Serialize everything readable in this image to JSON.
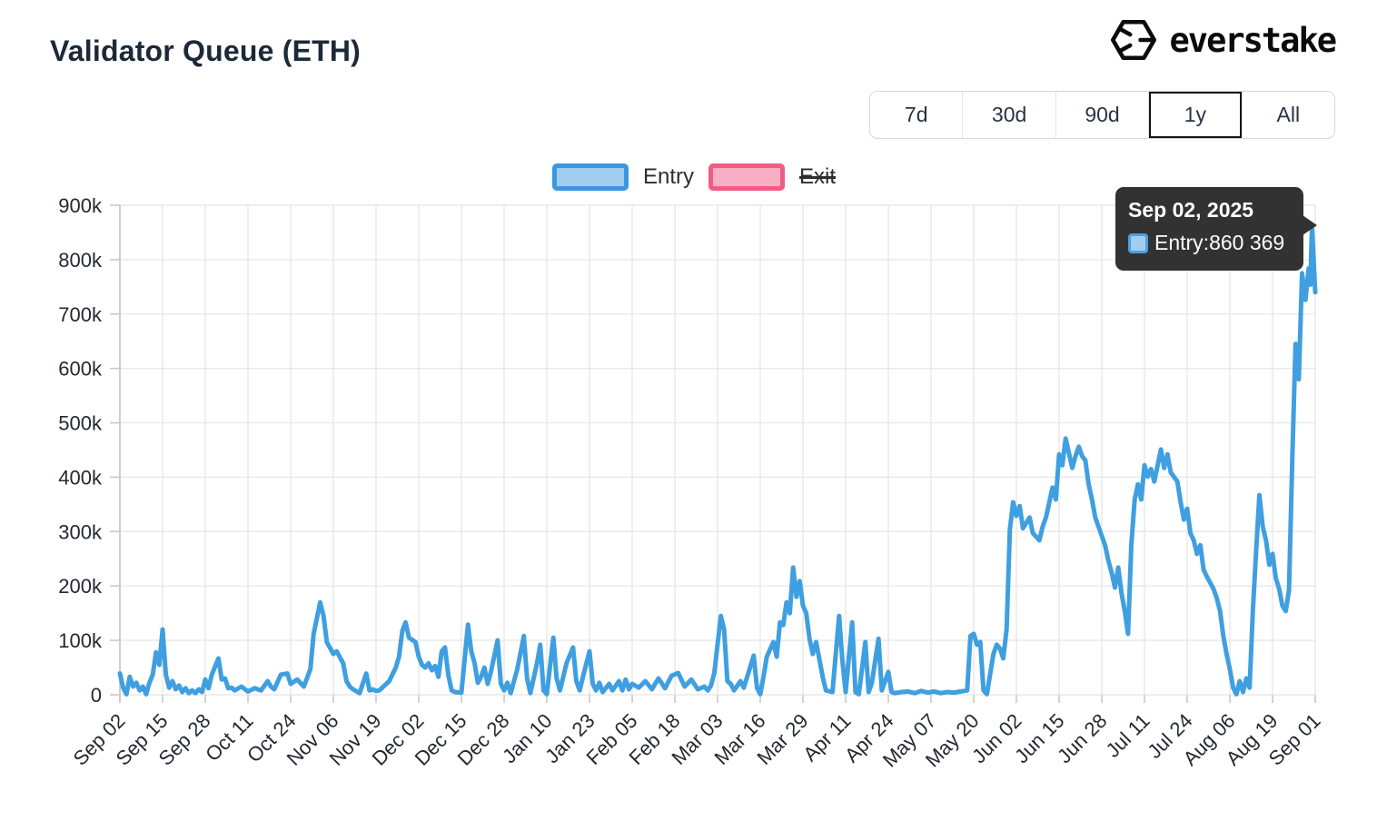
{
  "header": {
    "title": "Validator Queue (ETH)",
    "brand": "everstake"
  },
  "range_selector": {
    "options": [
      "7d",
      "30d",
      "90d",
      "1y",
      "All"
    ],
    "selected": "1y"
  },
  "legend": {
    "items": [
      {
        "label": "Entry",
        "color": "#3b97e0",
        "fill": "#a2cdf0",
        "hidden": false
      },
      {
        "label": "Exit",
        "color": "#f25c82",
        "fill": "#f8afc4",
        "hidden": true
      }
    ]
  },
  "tooltip": {
    "date": "Sep 02, 2025",
    "row_label": "Entry",
    "separator": ": ",
    "row_value": "860 369"
  },
  "chart_data": {
    "type": "line",
    "title": "Validator Queue (ETH)",
    "xlabel": "",
    "ylabel": "",
    "unit": "validators",
    "grid": true,
    "legend_position": "top-center",
    "ylim": [
      0,
      900000
    ],
    "y_tick_values": [
      0,
      100000,
      200000,
      300000,
      400000,
      500000,
      600000,
      700000,
      800000,
      900000
    ],
    "y_tick_labels": [
      "0",
      "100k",
      "200k",
      "300k",
      "400k",
      "500k",
      "600k",
      "700k",
      "800k",
      "900k"
    ],
    "x_tick_interval_days": 13,
    "x_span_days": 364,
    "x_tick_labels": [
      "Sep 02",
      "Sep 15",
      "Sep 28",
      "Oct 11",
      "Oct 24",
      "Nov 06",
      "Nov 19",
      "Dec 02",
      "Dec 15",
      "Dec 28",
      "Jan 10",
      "Jan 23",
      "Feb 05",
      "Feb 18",
      "Mar 03",
      "Mar 16",
      "Mar 29",
      "Apr 11",
      "Apr 24",
      "May 07",
      "May 20",
      "Jun 02",
      "Jun 15",
      "Jun 28",
      "Jul 11",
      "Jul 24",
      "Aug 06",
      "Aug 19",
      "Sep 01"
    ],
    "hovered_point": {
      "date": "Sep 02, 2025",
      "series": "Entry",
      "value": 860369
    },
    "series": [
      {
        "name": "Entry",
        "visible": true,
        "color": "#3f9fe0",
        "points": [
          [
            0,
            39000
          ],
          [
            1,
            13000
          ],
          [
            2,
            1000
          ],
          [
            3,
            33000
          ],
          [
            4,
            15000
          ],
          [
            5,
            22000
          ],
          [
            6,
            8000
          ],
          [
            7,
            15000
          ],
          [
            8,
            1000
          ],
          [
            9,
            22000
          ],
          [
            10,
            37000
          ],
          [
            11,
            78000
          ],
          [
            12,
            55000
          ],
          [
            13,
            120000
          ],
          [
            14,
            37000
          ],
          [
            15,
            13000
          ],
          [
            16,
            25000
          ],
          [
            17,
            10000
          ],
          [
            18,
            17000
          ],
          [
            19,
            5000
          ],
          [
            20,
            12000
          ],
          [
            21,
            3000
          ],
          [
            22,
            8000
          ],
          [
            23,
            3000
          ],
          [
            24,
            10000
          ],
          [
            25,
            5000
          ],
          [
            26,
            28000
          ],
          [
            27,
            12000
          ],
          [
            28,
            37000
          ],
          [
            30,
            67000
          ],
          [
            31,
            28000
          ],
          [
            32,
            30000
          ],
          [
            33,
            12000
          ],
          [
            34,
            13000
          ],
          [
            35,
            8000
          ],
          [
            37,
            15000
          ],
          [
            39,
            6000
          ],
          [
            41,
            12000
          ],
          [
            43,
            8000
          ],
          [
            45,
            25000
          ],
          [
            46,
            15000
          ],
          [
            47,
            10000
          ],
          [
            49,
            37000
          ],
          [
            51,
            39000
          ],
          [
            52,
            20000
          ],
          [
            54,
            28000
          ],
          [
            56,
            15000
          ],
          [
            58,
            47000
          ],
          [
            59,
            112000
          ],
          [
            61,
            170000
          ],
          [
            62,
            145000
          ],
          [
            63,
            97000
          ],
          [
            65,
            75000
          ],
          [
            66,
            80000
          ],
          [
            68,
            58000
          ],
          [
            69,
            25000
          ],
          [
            70,
            15000
          ],
          [
            71,
            10000
          ],
          [
            73,
            3000
          ],
          [
            75,
            39000
          ],
          [
            76,
            8000
          ],
          [
            77,
            10000
          ],
          [
            78,
            7000
          ],
          [
            79,
            8000
          ],
          [
            82,
            25000
          ],
          [
            84,
            50000
          ],
          [
            85,
            70000
          ],
          [
            86,
            117000
          ],
          [
            87,
            133000
          ],
          [
            88,
            105000
          ],
          [
            90,
            97000
          ],
          [
            91,
            70000
          ],
          [
            92,
            55000
          ],
          [
            93,
            50000
          ],
          [
            94,
            58000
          ],
          [
            95,
            45000
          ],
          [
            96,
            53000
          ],
          [
            97,
            33000
          ],
          [
            98,
            80000
          ],
          [
            99,
            87000
          ],
          [
            100,
            37000
          ],
          [
            101,
            8000
          ],
          [
            102,
            5000
          ],
          [
            104,
            4000
          ],
          [
            106,
            129000
          ],
          [
            107,
            80000
          ],
          [
            108,
            58000
          ],
          [
            109,
            22000
          ],
          [
            110,
            33000
          ],
          [
            111,
            50000
          ],
          [
            112,
            20000
          ],
          [
            113,
            42000
          ],
          [
            115,
            100000
          ],
          [
            116,
            20000
          ],
          [
            117,
            8000
          ],
          [
            118,
            22000
          ],
          [
            119,
            3000
          ],
          [
            121,
            47000
          ],
          [
            123,
            108000
          ],
          [
            124,
            30000
          ],
          [
            125,
            3000
          ],
          [
            127,
            58000
          ],
          [
            128,
            92000
          ],
          [
            129,
            8000
          ],
          [
            130,
            1000
          ],
          [
            132,
            105000
          ],
          [
            133,
            30000
          ],
          [
            134,
            8000
          ],
          [
            136,
            58000
          ],
          [
            138,
            87000
          ],
          [
            139,
            25000
          ],
          [
            140,
            8000
          ],
          [
            141,
            33000
          ],
          [
            143,
            80000
          ],
          [
            144,
            20000
          ],
          [
            145,
            8000
          ],
          [
            146,
            22000
          ],
          [
            147,
            5000
          ],
          [
            149,
            20000
          ],
          [
            150,
            8000
          ],
          [
            152,
            25000
          ],
          [
            153,
            8000
          ],
          [
            154,
            28000
          ],
          [
            155,
            10000
          ],
          [
            156,
            20000
          ],
          [
            158,
            13000
          ],
          [
            160,
            25000
          ],
          [
            162,
            10000
          ],
          [
            164,
            30000
          ],
          [
            166,
            12000
          ],
          [
            168,
            35000
          ],
          [
            170,
            40000
          ],
          [
            172,
            15000
          ],
          [
            174,
            28000
          ],
          [
            176,
            10000
          ],
          [
            178,
            15000
          ],
          [
            179,
            8000
          ],
          [
            180,
            17000
          ],
          [
            181,
            40000
          ],
          [
            183,
            145000
          ],
          [
            184,
            120000
          ],
          [
            185,
            25000
          ],
          [
            186,
            20000
          ],
          [
            187,
            8000
          ],
          [
            189,
            25000
          ],
          [
            190,
            13000
          ],
          [
            193,
            72000
          ],
          [
            194,
            13000
          ],
          [
            195,
            1000
          ],
          [
            196,
            33000
          ],
          [
            197,
            70000
          ],
          [
            199,
            97000
          ],
          [
            200,
            70000
          ],
          [
            201,
            133000
          ],
          [
            202,
            128000
          ],
          [
            203,
            170000
          ],
          [
            204,
            150000
          ],
          [
            205,
            234000
          ],
          [
            206,
            180000
          ],
          [
            207,
            209000
          ],
          [
            208,
            164000
          ],
          [
            209,
            150000
          ],
          [
            210,
            103000
          ],
          [
            211,
            75000
          ],
          [
            212,
            97000
          ],
          [
            214,
            33000
          ],
          [
            215,
            8000
          ],
          [
            217,
            5000
          ],
          [
            219,
            145000
          ],
          [
            220,
            63000
          ],
          [
            221,
            5000
          ],
          [
            223,
            133000
          ],
          [
            224,
            5000
          ],
          [
            225,
            1000
          ],
          [
            227,
            97000
          ],
          [
            228,
            5000
          ],
          [
            229,
            22000
          ],
          [
            231,
            103000
          ],
          [
            232,
            8000
          ],
          [
            234,
            42000
          ],
          [
            235,
            5000
          ],
          [
            236,
            3000
          ],
          [
            238,
            5000
          ],
          [
            240,
            6000
          ],
          [
            242,
            3000
          ],
          [
            244,
            7000
          ],
          [
            246,
            4000
          ],
          [
            248,
            6000
          ],
          [
            250,
            3000
          ],
          [
            252,
            5000
          ],
          [
            254,
            4000
          ],
          [
            256,
            6000
          ],
          [
            258,
            8000
          ],
          [
            259,
            108000
          ],
          [
            260,
            112000
          ],
          [
            261,
            92000
          ],
          [
            262,
            97000
          ],
          [
            263,
            8000
          ],
          [
            264,
            1000
          ],
          [
            266,
            75000
          ],
          [
            267,
            92000
          ],
          [
            268,
            85000
          ],
          [
            269,
            67000
          ],
          [
            270,
            120000
          ],
          [
            271,
            304000
          ],
          [
            272,
            354000
          ],
          [
            273,
            329000
          ],
          [
            274,
            347000
          ],
          [
            275,
            306000
          ],
          [
            277,
            326000
          ],
          [
            278,
            297000
          ],
          [
            280,
            284000
          ],
          [
            281,
            309000
          ],
          [
            282,
            326000
          ],
          [
            284,
            381000
          ],
          [
            285,
            359000
          ],
          [
            286,
            442000
          ],
          [
            287,
            422000
          ],
          [
            288,
            471000
          ],
          [
            290,
            417000
          ],
          [
            291,
            439000
          ],
          [
            292,
            456000
          ],
          [
            293,
            439000
          ],
          [
            294,
            431000
          ],
          [
            295,
            387000
          ],
          [
            296,
            359000
          ],
          [
            297,
            326000
          ],
          [
            299,
            292000
          ],
          [
            300,
            275000
          ],
          [
            301,
            247000
          ],
          [
            302,
            225000
          ],
          [
            303,
            197000
          ],
          [
            304,
            234000
          ],
          [
            305,
            187000
          ],
          [
            306,
            154000
          ],
          [
            307,
            112000
          ],
          [
            308,
            275000
          ],
          [
            309,
            359000
          ],
          [
            310,
            387000
          ],
          [
            311,
            359000
          ],
          [
            312,
            422000
          ],
          [
            313,
            401000
          ],
          [
            314,
            415000
          ],
          [
            315,
            392000
          ],
          [
            317,
            451000
          ],
          [
            318,
            417000
          ],
          [
            319,
            442000
          ],
          [
            320,
            409000
          ],
          [
            322,
            392000
          ],
          [
            323,
            354000
          ],
          [
            324,
            322000
          ],
          [
            325,
            342000
          ],
          [
            326,
            297000
          ],
          [
            327,
            284000
          ],
          [
            328,
            259000
          ],
          [
            329,
            275000
          ],
          [
            330,
            230000
          ],
          [
            331,
            217000
          ],
          [
            333,
            195000
          ],
          [
            334,
            178000
          ],
          [
            335,
            154000
          ],
          [
            336,
            108000
          ],
          [
            337,
            75000
          ],
          [
            338,
            47000
          ],
          [
            339,
            13000
          ],
          [
            340,
            1000
          ],
          [
            341,
            25000
          ],
          [
            342,
            5000
          ],
          [
            343,
            30000
          ],
          [
            344,
            13000
          ],
          [
            345,
            154000
          ],
          [
            346,
            264000
          ],
          [
            347,
            367000
          ],
          [
            348,
            309000
          ],
          [
            349,
            284000
          ],
          [
            350,
            239000
          ],
          [
            351,
            259000
          ],
          [
            352,
            214000
          ],
          [
            353,
            195000
          ],
          [
            354,
            164000
          ],
          [
            355,
            154000
          ],
          [
            356,
            192000
          ],
          [
            357,
            431000
          ],
          [
            358,
            645000
          ],
          [
            359,
            580000
          ],
          [
            360,
            775000
          ],
          [
            361,
            726000
          ],
          [
            362,
            784000
          ],
          [
            362.5,
            754000
          ],
          [
            363,
            860369
          ],
          [
            364,
            740000
          ]
        ]
      },
      {
        "name": "Exit",
        "visible": false,
        "color": "#f25c82",
        "points": []
      }
    ]
  }
}
